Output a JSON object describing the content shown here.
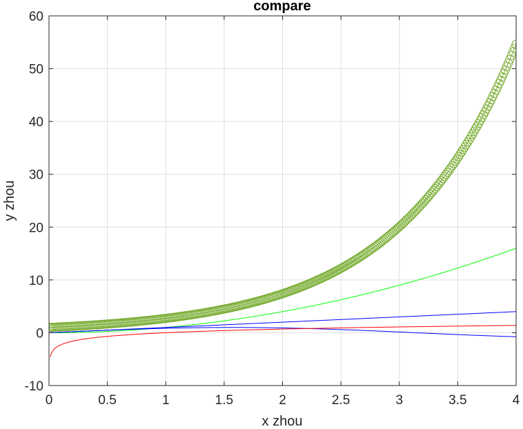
{
  "chart_data": {
    "type": "line",
    "title": "compare",
    "xlabel": "x zhou",
    "ylabel": "y zhou",
    "xlim": [
      0,
      4
    ],
    "ylim": [
      -10,
      60
    ],
    "grid": true,
    "xticks": [
      "0",
      "0.5",
      "1",
      "1.5",
      "2",
      "2.5",
      "3",
      "3.5",
      "4"
    ],
    "yticks": [
      "-10",
      "0",
      "10",
      "20",
      "30",
      "40",
      "50",
      "60"
    ],
    "series": [
      {
        "function": "exp(x)",
        "color": "#77ac30",
        "marker": "circle",
        "x": [
          0,
          0.25,
          0.5,
          0.75,
          1,
          1.25,
          1.5,
          1.75,
          2,
          2.25,
          2.5,
          2.75,
          3,
          3.25,
          3.5,
          3.75,
          4
        ],
        "y": [
          1,
          1.28,
          1.65,
          2.12,
          2.72,
          3.49,
          4.48,
          5.75,
          7.39,
          9.49,
          12.18,
          15.64,
          20.09,
          25.79,
          33.12,
          42.52,
          54.6
        ]
      },
      {
        "function": "x^2",
        "color": "#00ff00",
        "marker": "none",
        "x": [
          0,
          0.5,
          1,
          1.5,
          2,
          2.5,
          3,
          3.5,
          4
        ],
        "y": [
          0,
          0.25,
          1,
          2.25,
          4,
          6.25,
          9,
          12.25,
          16
        ]
      },
      {
        "function": "x",
        "color": "#0000ff",
        "marker": "none",
        "x": [
          0,
          4
        ],
        "y": [
          0,
          4
        ]
      },
      {
        "function": "sin(x)",
        "color": "#0000ff",
        "marker": "none",
        "x": [
          0,
          0.5,
          1,
          1.5,
          2,
          2.5,
          3,
          3.5,
          4
        ],
        "y": [
          0,
          0.48,
          0.84,
          1.0,
          0.91,
          0.6,
          0.14,
          -0.35,
          -0.76
        ]
      },
      {
        "function": "ln(x)",
        "color": "#ff0000",
        "marker": "none",
        "x": [
          0.01,
          0.05,
          0.1,
          0.25,
          0.5,
          0.75,
          1,
          1.5,
          2,
          2.5,
          3,
          3.5,
          4
        ],
        "y": [
          -4.61,
          -3.0,
          -2.3,
          -1.39,
          -0.69,
          -0.29,
          0,
          0.41,
          0.69,
          0.92,
          1.1,
          1.25,
          1.39
        ]
      }
    ]
  }
}
